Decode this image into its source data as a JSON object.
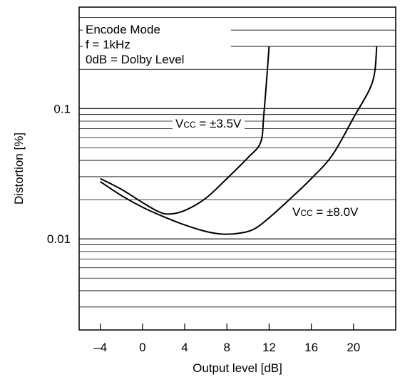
{
  "chart_data": {
    "type": "line",
    "xlabel": "Output level [dB]",
    "ylabel": "Distortion [%]",
    "xlim": [
      -6,
      24
    ],
    "ylim": [
      0.002,
      0.6
    ],
    "yscale": "log",
    "grid": "horizontal log minor lines",
    "x_ticks": [
      -4,
      0,
      4,
      8,
      12,
      16,
      20
    ],
    "x_tick_labels": [
      "–4",
      "0",
      "4",
      "8",
      "12",
      "16",
      "20"
    ],
    "y_ticks": [
      0.01,
      0.1
    ],
    "y_tick_labels": [
      "0.01",
      "0.1"
    ],
    "annotation_lines": [
      "Encode Mode",
      "f = 1kHz",
      "0dB = Dolby Level"
    ],
    "series": [
      {
        "name": "Vcc = ±3.5V",
        "label_main": "V",
        "label_sub": "CC",
        "label_rest": " = ±3.5V",
        "x": [
          -4,
          -2,
          0,
          1.5,
          2.5,
          4,
          6,
          8,
          10,
          11.2,
          11.5,
          11.8,
          12.0
        ],
        "y": [
          0.029,
          0.024,
          0.019,
          0.0162,
          0.0155,
          0.0165,
          0.0205,
          0.029,
          0.042,
          0.055,
          0.09,
          0.18,
          0.3
        ]
      },
      {
        "name": "Vcc = ±8.0V",
        "label_main": "V",
        "label_sub": "CC",
        "label_rest": " = ±8.0V",
        "x": [
          -4,
          -2,
          0,
          2,
          4,
          6,
          7.5,
          9,
          10.5,
          12,
          14,
          16,
          18,
          20,
          21.8,
          22.2
        ],
        "y": [
          0.0275,
          0.0215,
          0.0175,
          0.0148,
          0.0128,
          0.0114,
          0.0109,
          0.011,
          0.0118,
          0.0145,
          0.0203,
          0.029,
          0.044,
          0.085,
          0.16,
          0.3
        ]
      }
    ]
  }
}
